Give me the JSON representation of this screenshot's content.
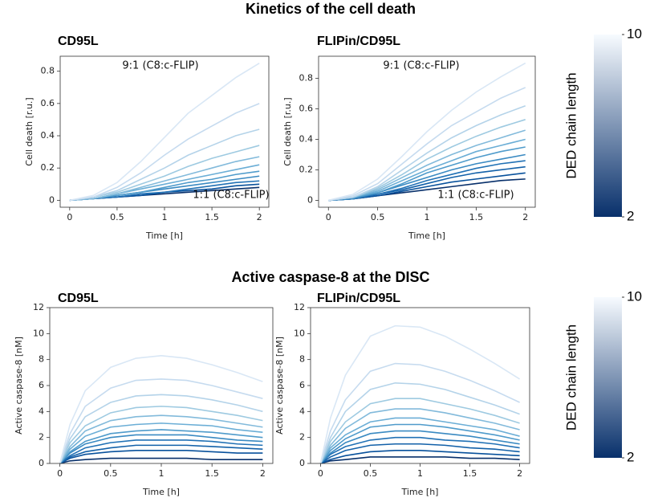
{
  "sections": [
    {
      "title": "Kinetics of the cell death",
      "colorbar": {
        "label": "DED chain length",
        "lim": [
          2,
          10
        ],
        "ticks": [
          2,
          10
        ],
        "colors": [
          "#08306b",
          "#f7fbff"
        ]
      }
    },
    {
      "title": "Active caspase-8 at the DISC",
      "colorbar": {
        "label": "DED chain length",
        "lim": [
          2,
          10
        ],
        "ticks": [
          2,
          10
        ],
        "colors": [
          "#08306b",
          "#f7fbff"
        ]
      }
    }
  ],
  "chart_data": [
    {
      "type": "line",
      "title": "CD95L",
      "xlabel": "Time [h]",
      "ylabel": "Cell death [r.u.]",
      "annotations": [
        "9:1 (C8:c-FLIP)",
        "1:1 (C8:c-FLIP)"
      ],
      "x": [
        0,
        0.25,
        0.5,
        0.75,
        1.0,
        1.25,
        1.5,
        1.75,
        2.0
      ],
      "xlim": [
        -0.1,
        2.1
      ],
      "xticks": [
        0.0,
        0.5,
        1.0,
        1.5,
        2.0
      ],
      "ylim": [
        -0.043,
        0.893
      ],
      "yticks": [
        0.0,
        0.2,
        0.4,
        0.6,
        0.8
      ],
      "series": [
        {
          "color": "#d9e7f5",
          "values": [
            0,
            0.03,
            0.11,
            0.24,
            0.39,
            0.54,
            0.65,
            0.76,
            0.85
          ]
        },
        {
          "color": "#c6dbef",
          "values": [
            0,
            0.02,
            0.08,
            0.17,
            0.28,
            0.38,
            0.46,
            0.54,
            0.6
          ]
        },
        {
          "color": "#b4d3e9",
          "values": [
            0,
            0.02,
            0.06,
            0.13,
            0.2,
            0.28,
            0.34,
            0.4,
            0.44
          ]
        },
        {
          "color": "#9ecae1",
          "values": [
            0,
            0.02,
            0.05,
            0.1,
            0.15,
            0.21,
            0.26,
            0.3,
            0.34
          ]
        },
        {
          "color": "#82badb",
          "values": [
            0,
            0.01,
            0.04,
            0.08,
            0.12,
            0.16,
            0.2,
            0.24,
            0.27
          ]
        },
        {
          "color": "#6baed6",
          "values": [
            0,
            0.01,
            0.04,
            0.07,
            0.1,
            0.13,
            0.16,
            0.19,
            0.22
          ]
        },
        {
          "color": "#4f9bcb",
          "values": [
            0,
            0.01,
            0.03,
            0.05,
            0.08,
            0.11,
            0.13,
            0.16,
            0.18
          ]
        },
        {
          "color": "#3a8ac2",
          "values": [
            0,
            0.01,
            0.03,
            0.05,
            0.07,
            0.09,
            0.11,
            0.13,
            0.15
          ]
        },
        {
          "color": "#2171b5",
          "values": [
            0,
            0.01,
            0.02,
            0.04,
            0.05,
            0.07,
            0.09,
            0.11,
            0.12
          ]
        },
        {
          "color": "#08519c",
          "values": [
            0,
            0.01,
            0.02,
            0.03,
            0.05,
            0.06,
            0.07,
            0.09,
            0.1
          ]
        },
        {
          "color": "#08306b",
          "values": [
            0,
            0.01,
            0.02,
            0.03,
            0.04,
            0.05,
            0.06,
            0.07,
            0.08
          ]
        }
      ]
    },
    {
      "type": "line",
      "title": "FLIPin/CD95L",
      "xlabel": "Time [h]",
      "ylabel": "Cell death [r.u.]",
      "annotations": [
        "9:1 (C8:c-FLIP)",
        "1:1 (C8:c-FLIP)"
      ],
      "x": [
        0,
        0.25,
        0.5,
        0.75,
        1.0,
        1.25,
        1.5,
        1.75,
        2.0
      ],
      "xlim": [
        -0.1,
        2.1
      ],
      "xticks": [
        0.0,
        0.5,
        1.0,
        1.5,
        2.0
      ],
      "ylim": [
        -0.045,
        0.945
      ],
      "yticks": [
        0.0,
        0.2,
        0.4,
        0.6,
        0.8
      ],
      "series": [
        {
          "color": "#d9e7f5",
          "values": [
            0,
            0.04,
            0.14,
            0.29,
            0.45,
            0.59,
            0.71,
            0.81,
            0.9
          ]
        },
        {
          "color": "#c6dbef",
          "values": [
            0,
            0.03,
            0.11,
            0.24,
            0.37,
            0.49,
            0.58,
            0.67,
            0.74
          ]
        },
        {
          "color": "#b4d3e9",
          "values": [
            0,
            0.02,
            0.09,
            0.2,
            0.31,
            0.41,
            0.49,
            0.56,
            0.62
          ]
        },
        {
          "color": "#9ecae1",
          "values": [
            0,
            0.02,
            0.08,
            0.17,
            0.27,
            0.35,
            0.42,
            0.48,
            0.53
          ]
        },
        {
          "color": "#82badb",
          "values": [
            0,
            0.02,
            0.07,
            0.15,
            0.23,
            0.3,
            0.36,
            0.41,
            0.46
          ]
        },
        {
          "color": "#6baed6",
          "values": [
            0,
            0.02,
            0.06,
            0.13,
            0.2,
            0.26,
            0.32,
            0.36,
            0.4
          ]
        },
        {
          "color": "#4f9bcb",
          "values": [
            0,
            0.02,
            0.05,
            0.11,
            0.18,
            0.23,
            0.28,
            0.32,
            0.35
          ]
        },
        {
          "color": "#3a8ac2",
          "values": [
            0,
            0.01,
            0.05,
            0.1,
            0.15,
            0.2,
            0.24,
            0.27,
            0.3
          ]
        },
        {
          "color": "#2171b5",
          "values": [
            0,
            0.01,
            0.04,
            0.08,
            0.13,
            0.17,
            0.21,
            0.24,
            0.26
          ]
        },
        {
          "color": "#1361a9",
          "values": [
            0,
            0.01,
            0.04,
            0.07,
            0.11,
            0.15,
            0.18,
            0.2,
            0.22
          ]
        },
        {
          "color": "#08519c",
          "values": [
            0,
            0.01,
            0.03,
            0.06,
            0.09,
            0.12,
            0.14,
            0.16,
            0.18
          ]
        },
        {
          "color": "#08306b",
          "values": [
            0,
            0.01,
            0.03,
            0.05,
            0.07,
            0.09,
            0.11,
            0.13,
            0.14
          ]
        }
      ]
    },
    {
      "type": "line",
      "title": "CD95L",
      "xlabel": "Time [h]",
      "ylabel": "Active caspase-8 [nM]",
      "x": [
        0,
        0.1,
        0.25,
        0.5,
        0.75,
        1.0,
        1.25,
        1.5,
        1.75,
        2.0
      ],
      "xlim": [
        -0.1,
        2.1
      ],
      "xticks": [
        0.0,
        0.5,
        1.0,
        1.5,
        2.0
      ],
      "ylim": [
        0,
        12
      ],
      "yticks": [
        0,
        2,
        4,
        6,
        8,
        10,
        12
      ],
      "series": [
        {
          "color": "#d9e7f5",
          "values": [
            0,
            3.0,
            5.6,
            7.4,
            8.1,
            8.3,
            8.1,
            7.6,
            7.0,
            6.3
          ]
        },
        {
          "color": "#c6dbef",
          "values": [
            0,
            2.3,
            4.4,
            5.8,
            6.4,
            6.5,
            6.4,
            6.0,
            5.5,
            5.0
          ]
        },
        {
          "color": "#b4d3e9",
          "values": [
            0,
            1.9,
            3.6,
            4.7,
            5.2,
            5.3,
            5.2,
            4.9,
            4.5,
            4.0
          ]
        },
        {
          "color": "#9ecae1",
          "values": [
            0,
            1.6,
            2.9,
            3.9,
            4.3,
            4.4,
            4.3,
            4.0,
            3.7,
            3.3
          ]
        },
        {
          "color": "#82badb",
          "values": [
            0,
            1.3,
            2.5,
            3.3,
            3.6,
            3.7,
            3.6,
            3.4,
            3.1,
            2.8
          ]
        },
        {
          "color": "#6baed6",
          "values": [
            0,
            1.1,
            2.1,
            2.8,
            3.0,
            3.1,
            3.0,
            2.9,
            2.6,
            2.4
          ]
        },
        {
          "color": "#4f9bcb",
          "values": [
            0,
            0.9,
            1.7,
            2.3,
            2.5,
            2.6,
            2.5,
            2.4,
            2.2,
            2.0
          ]
        },
        {
          "color": "#3a8ac2",
          "values": [
            0,
            0.8,
            1.5,
            2.0,
            2.2,
            2.2,
            2.2,
            2.0,
            1.8,
            1.7
          ]
        },
        {
          "color": "#2171b5",
          "values": [
            0,
            0.6,
            1.2,
            1.6,
            1.8,
            1.8,
            1.8,
            1.7,
            1.5,
            1.4
          ]
        },
        {
          "color": "#1361a9",
          "values": [
            0,
            0.5,
            0.9,
            1.2,
            1.4,
            1.4,
            1.4,
            1.3,
            1.2,
            1.1
          ]
        },
        {
          "color": "#08519c",
          "values": [
            0,
            0.4,
            0.7,
            0.9,
            1.0,
            1.0,
            1.0,
            0.9,
            0.8,
            0.8
          ]
        },
        {
          "color": "#08306b",
          "values": [
            0,
            0.2,
            0.3,
            0.4,
            0.4,
            0.4,
            0.4,
            0.3,
            0.3,
            0.3
          ]
        }
      ]
    },
    {
      "type": "line",
      "title": "FLIPin/CD95L",
      "xlabel": "Time [h]",
      "ylabel": "Active caspase-8 [nM]",
      "x": [
        0,
        0.1,
        0.25,
        0.5,
        0.75,
        1.0,
        1.25,
        1.5,
        1.75,
        2.0
      ],
      "xlim": [
        -0.1,
        2.1
      ],
      "xticks": [
        0.0,
        0.5,
        1.0,
        1.5,
        2.0
      ],
      "ylim": [
        0,
        12
      ],
      "yticks": [
        0,
        2,
        4,
        6,
        8,
        10,
        12
      ],
      "series": [
        {
          "color": "#d9e7f5",
          "values": [
            0,
            3.5,
            6.8,
            9.8,
            10.6,
            10.5,
            9.8,
            8.8,
            7.7,
            6.5
          ]
        },
        {
          "color": "#c6dbef",
          "values": [
            0,
            2.5,
            4.9,
            7.1,
            7.7,
            7.6,
            7.1,
            6.4,
            5.6,
            4.7
          ]
        },
        {
          "color": "#b4d3e9",
          "values": [
            0,
            2.0,
            4.0,
            5.7,
            6.2,
            6.1,
            5.7,
            5.1,
            4.5,
            3.8
          ]
        },
        {
          "color": "#9ecae1",
          "values": [
            0,
            1.7,
            3.2,
            4.6,
            5.0,
            5.0,
            4.6,
            4.2,
            3.7,
            3.1
          ]
        },
        {
          "color": "#82badb",
          "values": [
            0,
            1.4,
            2.7,
            3.9,
            4.2,
            4.2,
            3.9,
            3.5,
            3.1,
            2.6
          ]
        },
        {
          "color": "#6baed6",
          "values": [
            0,
            1.2,
            2.2,
            3.2,
            3.5,
            3.5,
            3.2,
            2.9,
            2.6,
            2.1
          ]
        },
        {
          "color": "#4f9bcb",
          "values": [
            0,
            1.0,
            1.9,
            2.8,
            3.0,
            3.0,
            2.8,
            2.5,
            2.2,
            1.8
          ]
        },
        {
          "color": "#3a8ac2",
          "values": [
            0,
            0.8,
            1.6,
            2.3,
            2.5,
            2.5,
            2.3,
            2.1,
            1.8,
            1.5
          ]
        },
        {
          "color": "#2171b5",
          "values": [
            0,
            0.7,
            1.3,
            1.8,
            2.0,
            2.0,
            1.8,
            1.7,
            1.5,
            1.2
          ]
        },
        {
          "color": "#1361a9",
          "values": [
            0,
            0.5,
            1.0,
            1.4,
            1.5,
            1.5,
            1.4,
            1.2,
            1.1,
            0.9
          ]
        },
        {
          "color": "#08519c",
          "values": [
            0,
            0.3,
            0.6,
            0.9,
            1.0,
            1.0,
            0.9,
            0.8,
            0.7,
            0.6
          ]
        },
        {
          "color": "#08306b",
          "values": [
            0,
            0.2,
            0.3,
            0.5,
            0.5,
            0.5,
            0.5,
            0.4,
            0.4,
            0.3
          ]
        }
      ]
    }
  ]
}
